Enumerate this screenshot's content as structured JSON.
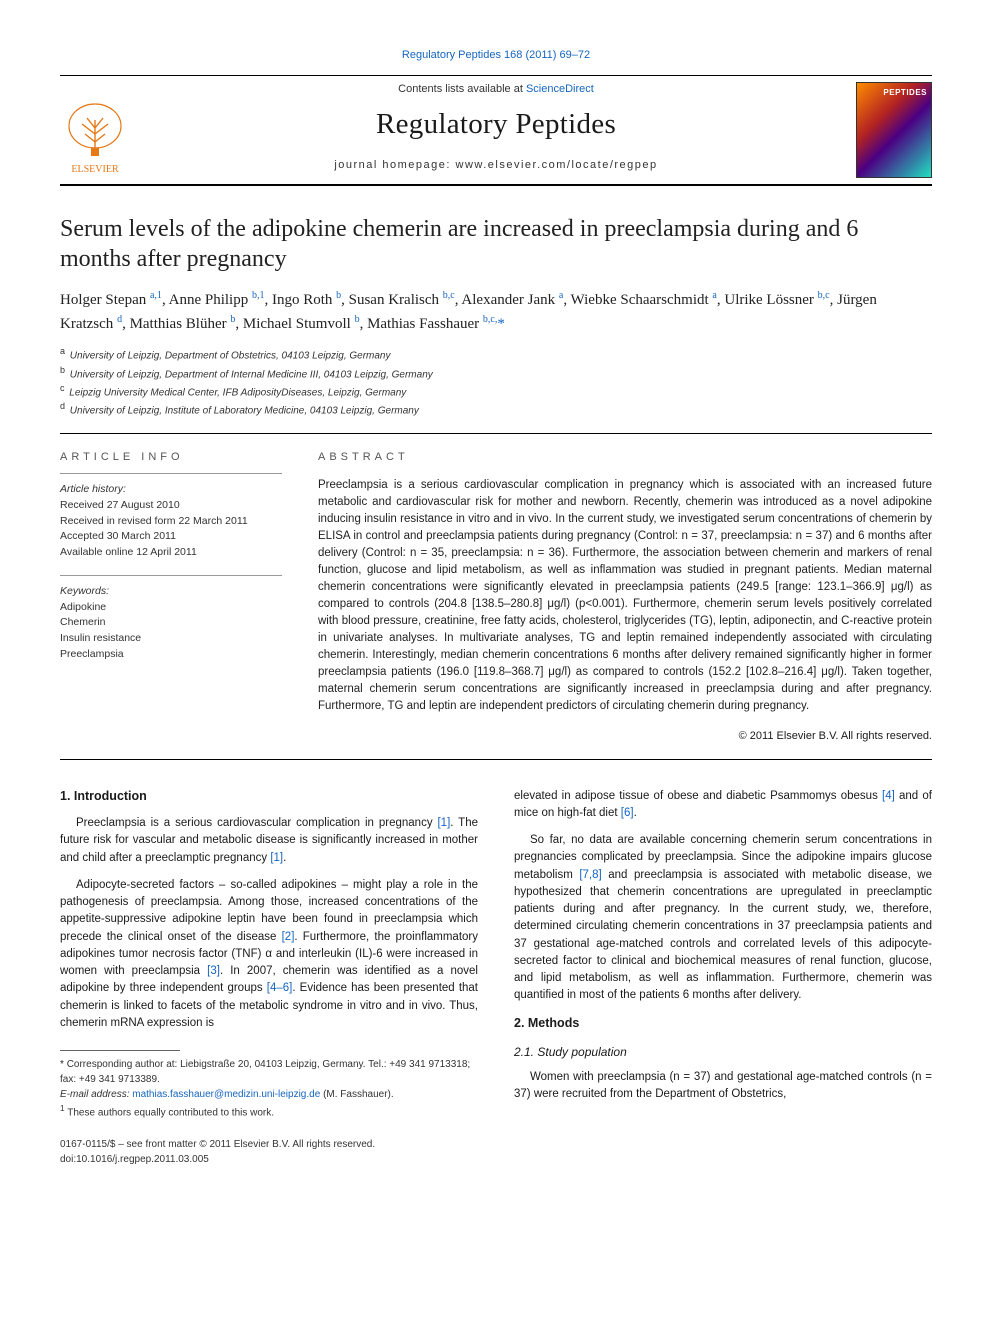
{
  "top_citation": "Regulatory Peptides 168 (2011) 69–72",
  "masthead": {
    "contents_line_prefix": "Contents lists available at ",
    "contents_link": "ScienceDirect",
    "journal_name": "Regulatory Peptides",
    "homepage_prefix": "journal homepage: ",
    "homepage": "www.elsevier.com/locate/regpep",
    "cover_label": "PEPTIDES",
    "publisher": "ELSEVIER"
  },
  "title": "Serum levels of the adipokine chemerin are increased in preeclampsia during and 6 months after pregnancy",
  "authors_html": "Holger Stepan <sup>a,1</sup>, Anne Philipp <sup>b,1</sup>, Ingo Roth <sup>b</sup>, Susan Kralisch <sup>b,c</sup>, Alexander Jank <sup>a</sup>, Wiebke Schaarschmidt <sup>a</sup>, Ulrike Lössner <sup>b,c</sup>, Jürgen Kratzsch <sup>d</sup>, Matthias Blüher <sup>b</sup>, Michael Stumvoll <sup>b</sup>, Mathias Fasshauer <sup>b,c,</sup><span class='star'>*</span>",
  "affiliations": [
    {
      "key": "a",
      "text": "University of Leipzig, Department of Obstetrics, 04103 Leipzig, Germany"
    },
    {
      "key": "b",
      "text": "University of Leipzig, Department of Internal Medicine III, 04103 Leipzig, Germany"
    },
    {
      "key": "c",
      "text": "Leipzig University Medical Center, IFB AdiposityDiseases, Leipzig, Germany"
    },
    {
      "key": "d",
      "text": "University of Leipzig, Institute of Laboratory Medicine, 04103 Leipzig, Germany"
    }
  ],
  "article_info": {
    "heading": "ARTICLE INFO",
    "history_label": "Article history:",
    "history": [
      "Received 27 August 2010",
      "Received in revised form 22 March 2011",
      "Accepted 30 March 2011",
      "Available online 12 April 2011"
    ],
    "keywords_label": "Keywords:",
    "keywords": [
      "Adipokine",
      "Chemerin",
      "Insulin resistance",
      "Preeclampsia"
    ]
  },
  "abstract": {
    "heading": "ABSTRACT",
    "text": "Preeclampsia is a serious cardiovascular complication in pregnancy which is associated with an increased future metabolic and cardiovascular risk for mother and newborn. Recently, chemerin was introduced as a novel adipokine inducing insulin resistance in vitro and in vivo. In the current study, we investigated serum concentrations of chemerin by ELISA in control and preeclampsia patients during pregnancy (Control: n = 37, preeclampsia: n = 37) and 6 months after delivery (Control: n = 35, preeclampsia: n = 36). Furthermore, the association between chemerin and markers of renal function, glucose and lipid metabolism, as well as inflammation was studied in pregnant patients. Median maternal chemerin concentrations were significantly elevated in preeclampsia patients (249.5 [range: 123.1–366.9] μg/l) as compared to controls (204.8 [138.5–280.8] μg/l) (p<0.001). Furthermore, chemerin serum levels positively correlated with blood pressure, creatinine, free fatty acids, cholesterol, triglycerides (TG), leptin, adiponectin, and C-reactive protein in univariate analyses. In multivariate analyses, TG and leptin remained independently associated with circulating chemerin. Interestingly, median chemerin concentrations 6 months after delivery remained significantly higher in former preeclampsia patients (196.0 [119.8–368.7] μg/l) as compared to controls (152.2 [102.8–216.4] μg/l). Taken together, maternal chemerin serum concentrations are significantly increased in preeclampsia during and after pregnancy. Furthermore, TG and leptin are independent predictors of circulating chemerin during pregnancy.",
    "copyright": "© 2011 Elsevier B.V. All rights reserved."
  },
  "sections": {
    "intro_head": "1. Introduction",
    "intro_p1": "Preeclampsia is a serious cardiovascular complication in pregnancy <span class='cite'>[1]</span>. The future risk for vascular and metabolic disease is significantly increased in mother and child after a preeclamptic pregnancy <span class='cite'>[1]</span>.",
    "intro_p2": "Adipocyte-secreted factors – so-called adipokines – might play a role in the pathogenesis of preeclampsia. Among those, increased concentrations of the appetite-suppressive adipokine leptin have been found in preeclampsia which precede the clinical onset of the disease <span class='cite'>[2]</span>. Furthermore, the proinflammatory adipokines tumor necrosis factor (TNF) α and interleukin (IL)-6 were increased in women with preeclampsia <span class='cite'>[3]</span>. In 2007, chemerin was identified as a novel adipokine by three independent groups <span class='cite'>[4–6]</span>. Evidence has been presented that chemerin is linked to facets of the metabolic syndrome in vitro and in vivo. Thus, chemerin mRNA expression is",
    "col2_p1": "elevated in adipose tissue of obese and diabetic Psammomys obesus <span class='cite'>[4]</span> and of mice on high-fat diet <span class='cite'>[6]</span>.",
    "col2_p2": "So far, no data are available concerning chemerin serum concentrations in pregnancies complicated by preeclampsia. Since the adipokine impairs glucose metabolism <span class='cite'>[7,8]</span> and preeclampsia is associated with metabolic disease, we hypothesized that chemerin concentrations are upregulated in preeclamptic patients during and after pregnancy. In the current study, we, therefore, determined circulating chemerin concentrations in 37 preeclampsia patients and 37 gestational age-matched controls and correlated levels of this adipocyte-secreted factor to clinical and biochemical measures of renal function, glucose, and lipid metabolism, as well as inflammation. Furthermore, chemerin was quantified in most of the patients 6 months after delivery.",
    "methods_head": "2. Methods",
    "methods_sub": "2.1. Study population",
    "methods_p1": "Women with preeclampsia (n = 37) and gestational age-matched controls (n = 37) were recruited from the Department of Obstetrics,"
  },
  "footnotes": {
    "corr": "Corresponding author at: Liebigstraße 20, 04103 Leipzig, Germany. Tel.: +49 341 9713318; fax: +49 341 9713389.",
    "email_label": "E-mail address:",
    "email": "mathias.fasshauer@medizin.uni-leipzig.de",
    "email_paren": "(M. Fasshauer).",
    "equal": "These authors equally contributed to this work."
  },
  "page_foot": {
    "line1": "0167-0115/$ – see front matter © 2011 Elsevier B.V. All rights reserved.",
    "line2": "doi:10.1016/j.regpep.2011.03.005"
  },
  "colors": {
    "link": "#1565c0",
    "logo": "#e67817",
    "text": "#1a1a1a",
    "rule": "#000000"
  }
}
